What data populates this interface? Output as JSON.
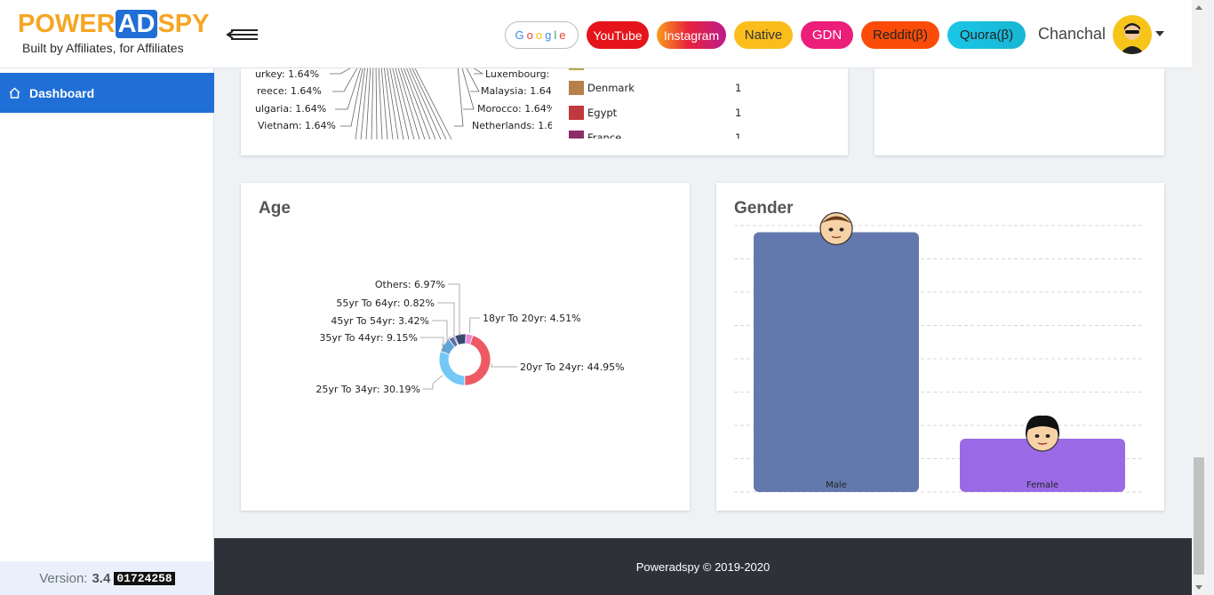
{
  "brand": {
    "name_part1": "POWER",
    "name_ad": "AD",
    "name_part2": "SPY",
    "tagline": "Built by Affiliates, for Affiliates"
  },
  "header": {
    "platforms": [
      {
        "label": "Google"
      },
      {
        "label": "YouTube"
      },
      {
        "label": "Instagram"
      },
      {
        "label": "Native"
      },
      {
        "label": "GDN"
      },
      {
        "label": "Reddit(β)"
      },
      {
        "label": "Quora(β)"
      }
    ],
    "username": "Chanchal"
  },
  "sidebar": {
    "items": [
      {
        "label": "Dashboard"
      }
    ],
    "version_label": "Version:",
    "version_number": "3.4",
    "build": "01724258"
  },
  "country_card": {
    "pie_labels_left": [
      "urkey: 1.64%",
      "reece: 1.64%",
      "ulgaria: 1.64%",
      "Vietnam: 1.64%"
    ],
    "pie_labels_right": [
      "Luxembourg:",
      "Malaysia: 1.64",
      "Morocco: 1.64%",
      "Netherlands: 1.6"
    ],
    "legend": [
      {
        "name": "Denmark",
        "value": "1",
        "color": "#b5804a"
      },
      {
        "name": "Egypt",
        "value": "1",
        "color": "#c0393f"
      },
      {
        "name": "France",
        "value": "1",
        "color": "#8e2d6a"
      }
    ]
  },
  "age_card": {
    "title": "Age",
    "chart_data": {
      "type": "pie",
      "segments": [
        {
          "label": "18yr To 20yr: 4.51%",
          "value": 4.51,
          "color": "#e68ad8"
        },
        {
          "label": "20yr To 24yr: 44.95%",
          "value": 44.95,
          "color": "#ee5a64"
        },
        {
          "label": "25yr To 34yr: 30.19%",
          "value": 30.19,
          "color": "#74c8f6"
        },
        {
          "label": "35yr To 44yr: 9.15%",
          "value": 9.15,
          "color": "#5fa6d8"
        },
        {
          "label": "45yr To 54yr: 3.42%",
          "value": 3.42,
          "color": "#5d6ea8"
        },
        {
          "label": "55yr To 64yr: 0.82%",
          "value": 0.82,
          "color": "#2f3e66"
        },
        {
          "label": "Others: 6.97%",
          "value": 6.97,
          "color": "#38496e"
        }
      ]
    }
  },
  "gender_card": {
    "title": "Gender",
    "chart_data": {
      "type": "bar",
      "categories": [
        "Male",
        "Female"
      ],
      "values": [
        78,
        16
      ],
      "ylim": [
        0,
        80
      ],
      "colors": [
        "#6378ad",
        "#9a6ae6"
      ]
    }
  },
  "footer": {
    "text": "Poweradspy © 2019-2020"
  }
}
